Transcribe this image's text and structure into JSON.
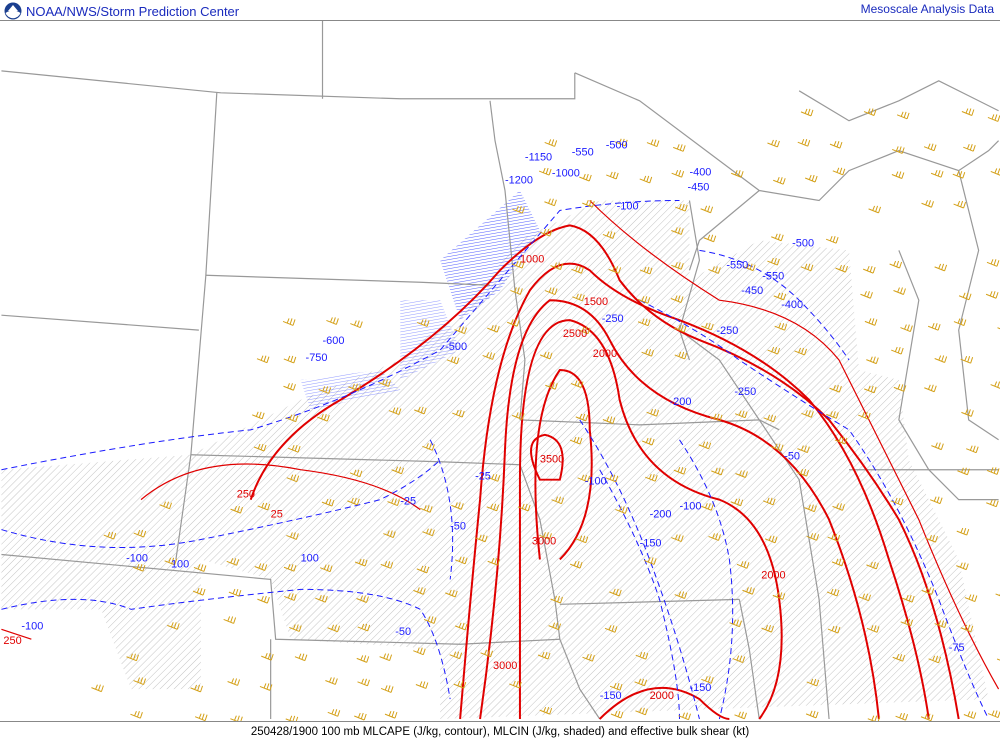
{
  "header": {
    "left_title": "NOAA/NWS/Storm Prediction Center",
    "right_title": "Mesoscale Analysis Data",
    "logo": "noaa-logo"
  },
  "footer": {
    "caption": "250428/1900 100 mb MLCAPE (J/kg, contour), MLCIN (J/kg, shaded) and effective bulk shear (kt)"
  },
  "colors": {
    "title_text": "#1a2bbd",
    "cape_contour": "#e00000",
    "cin_contour": "#1a1aff",
    "shear_barbs": "#d4a017",
    "borders": "#999999"
  },
  "cape_labels": [
    "1000",
    "1500",
    "2500",
    "2000",
    "3500",
    "3000",
    "3000",
    "2000",
    "2000",
    "250",
    "250",
    "25"
  ],
  "cin_labels": [
    "-1150",
    "-1000",
    "-550",
    "-500",
    "-1200",
    "-400",
    "-450",
    "-100",
    "-500",
    "-550",
    "-550",
    "-450",
    "-400",
    "-250",
    "-250",
    "-200",
    "-250",
    "-50",
    "-100",
    "-200",
    "-100",
    "-150",
    "-150",
    "-150",
    "-75",
    "-50",
    "-25",
    "-50",
    "-25",
    "-100",
    "-100",
    "100",
    "100",
    "-750",
    "-600",
    "-500"
  ]
}
